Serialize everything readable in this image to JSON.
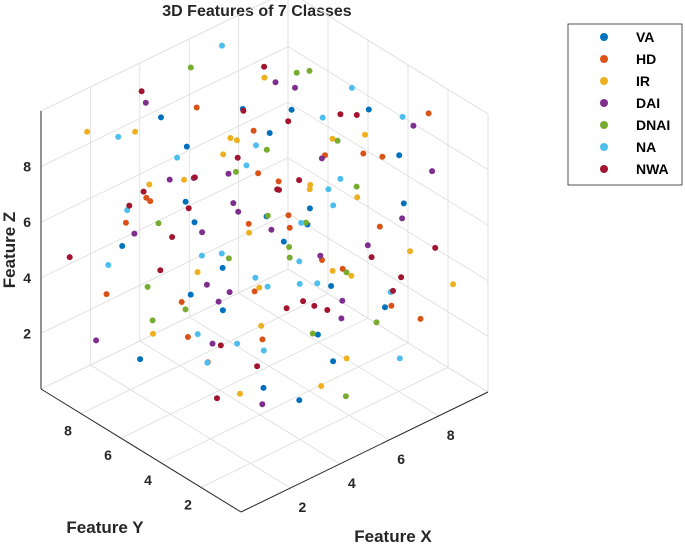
{
  "chart_data": {
    "type": "scatter3d",
    "title": "3D Features of 7 Classes",
    "xlabel": "Feature X",
    "ylabel": "Feature Y",
    "zlabel": "Feature Z",
    "xlim": [
      0,
      10
    ],
    "ylim": [
      0,
      10
    ],
    "zlim": [
      0,
      10
    ],
    "xticks": [
      "2",
      "4",
      "6",
      "8"
    ],
    "yticks": [
      "2",
      "4",
      "6",
      "8"
    ],
    "zticks": [
      "2",
      "4",
      "6",
      "8"
    ],
    "grid": true,
    "legend_position": "top-right",
    "series": [
      {
        "name": "VA",
        "color": "#0072BD",
        "points": [
          [
            2.1,
            3.5,
            4.8
          ],
          [
            6.8,
            1.2,
            3.9
          ],
          [
            3.4,
            8.2,
            9.1
          ],
          [
            8.1,
            5.5,
            2.2
          ],
          [
            4.6,
            4.4,
            6.7
          ],
          [
            1.5,
            6.9,
            1.8
          ],
          [
            7.2,
            8.8,
            7.5
          ],
          [
            5.3,
            2.7,
            2.9
          ],
          [
            9.1,
            3.1,
            5.8
          ],
          [
            2.8,
            9.4,
            4.2
          ],
          [
            6.1,
            6.1,
            8.3
          ],
          [
            3.9,
            1.9,
            1.5
          ],
          [
            8.6,
            7.3,
            3.4
          ],
          [
            5.7,
            4.9,
            5.1
          ],
          [
            1.2,
            2.4,
            7.2
          ],
          [
            7.7,
            1.6,
            8.8
          ],
          [
            4.2,
            7.7,
            2.6
          ],
          [
            9.5,
            9.2,
            6.3
          ],
          [
            2.5,
            5.8,
            9.5
          ],
          [
            6.4,
            3.3,
            1.2
          ],
          [
            3.1,
            6.6,
            6.9
          ],
          [
            8.9,
            4.6,
            8.6
          ],
          [
            5.0,
            8.5,
            4.5
          ],
          [
            1.8,
            1.1,
            3.2
          ],
          [
            7.0,
            5.2,
            5.6
          ]
        ]
      },
      {
        "name": "HD",
        "color": "#D95319",
        "points": [
          [
            1.6,
            8.7,
            3.3
          ],
          [
            7.4,
            2.2,
            6.1
          ],
          [
            4.8,
            5.3,
            9.3
          ],
          [
            9.3,
            6.4,
            1.9
          ],
          [
            2.9,
            2.9,
            5.4
          ],
          [
            5.9,
            9.5,
            7.8
          ],
          [
            8.4,
            1.4,
            2.7
          ],
          [
            3.6,
            7.1,
            1.6
          ],
          [
            6.6,
            4.1,
            4.4
          ],
          [
            1.1,
            5.9,
            8.1
          ],
          [
            8.0,
            8.0,
            4.9
          ],
          [
            4.4,
            3.0,
            7.0
          ],
          [
            9.7,
            2.6,
            9.0
          ],
          [
            2.3,
            4.5,
            2.4
          ],
          [
            6.2,
            6.8,
            6.5
          ],
          [
            3.3,
            1.7,
            8.5
          ],
          [
            7.6,
            9.0,
            3.1
          ],
          [
            5.4,
            5.6,
            1.4
          ],
          [
            1.9,
            8.1,
            6.0
          ],
          [
            8.8,
            3.8,
            7.3
          ],
          [
            4.1,
            9.8,
            5.2
          ],
          [
            6.9,
            1.0,
            4.0
          ],
          [
            2.7,
            6.3,
            3.6
          ],
          [
            9.0,
            5.0,
            6.8
          ],
          [
            5.1,
            2.1,
            9.7
          ]
        ]
      },
      {
        "name": "IR",
        "color": "#EDB120",
        "points": [
          [
            3.0,
            9.0,
            8.4
          ],
          [
            8.3,
            1.8,
            5.0
          ],
          [
            5.6,
            6.0,
            3.0
          ],
          [
            1.4,
            3.9,
            6.3
          ],
          [
            7.1,
            7.6,
            9.2
          ],
          [
            4.3,
            1.3,
            2.1
          ],
          [
            9.4,
            5.8,
            4.7
          ],
          [
            2.2,
            7.3,
            7.6
          ],
          [
            6.3,
            2.5,
            1.7
          ],
          [
            4.9,
            8.9,
            5.9
          ],
          [
            8.5,
            4.3,
            8.0
          ],
          [
            1.7,
            6.5,
            2.8
          ],
          [
            7.3,
            3.5,
            3.8
          ],
          [
            3.7,
            5.1,
            9.6
          ],
          [
            6.0,
            8.3,
            6.6
          ],
          [
            9.8,
            1.5,
            3.3
          ],
          [
            2.6,
            2.2,
            4.6
          ],
          [
            5.5,
            7.0,
            7.9
          ],
          [
            8.1,
            9.6,
            2.3
          ],
          [
            3.2,
            4.0,
            1.1
          ],
          [
            7.8,
            6.2,
            5.5
          ],
          [
            1.3,
            9.3,
            9.0
          ],
          [
            6.7,
            3.7,
            8.9
          ],
          [
            4.6,
            1.1,
            6.2
          ],
          [
            9.2,
            7.9,
            4.3
          ]
        ]
      },
      {
        "name": "DAI",
        "color": "#7E2F8E",
        "points": [
          [
            1.0,
            4.8,
            9.4
          ],
          [
            6.5,
            8.6,
            1.3
          ],
          [
            3.5,
            2.8,
            7.4
          ],
          [
            8.7,
            6.7,
            6.0
          ],
          [
            5.2,
            1.4,
            4.1
          ],
          [
            2.0,
            7.8,
            5.7
          ],
          [
            7.5,
            4.2,
            2.5
          ],
          [
            4.0,
            9.7,
            8.7
          ],
          [
            9.6,
            2.3,
            7.1
          ],
          [
            2.4,
            1.9,
            2.0
          ],
          [
            6.8,
            5.7,
            9.8
          ],
          [
            3.8,
            6.4,
            3.7
          ],
          [
            8.2,
            8.4,
            8.2
          ],
          [
            5.8,
            3.2,
            5.3
          ],
          [
            1.5,
            9.1,
            1.5
          ],
          [
            7.9,
            1.7,
            6.4
          ],
          [
            4.5,
            7.5,
            4.8
          ],
          [
            9.1,
            4.9,
            3.5
          ],
          [
            2.8,
            3.6,
            8.0
          ],
          [
            6.1,
            9.9,
            5.0
          ],
          [
            3.3,
            5.5,
            2.2
          ],
          [
            8.6,
            2.0,
            9.3
          ],
          [
            5.0,
            6.8,
            7.0
          ],
          [
            1.2,
            2.6,
            5.9
          ],
          [
            7.3,
            9.4,
            3.8
          ]
        ]
      },
      {
        "name": "DNAI",
        "color": "#77AC30",
        "points": [
          [
            2.3,
            1.5,
            9.0
          ],
          [
            7.8,
            7.2,
            2.6
          ],
          [
            4.7,
            3.4,
            6.0
          ],
          [
            9.9,
            8.8,
            7.7
          ],
          [
            1.8,
            5.0,
            4.3
          ],
          [
            6.3,
            2.0,
            8.1
          ],
          [
            3.1,
            8.5,
            3.0
          ],
          [
            8.4,
            3.6,
            1.6
          ],
          [
            5.5,
            9.3,
            9.5
          ],
          [
            1.6,
            6.1,
            7.0
          ],
          [
            7.0,
            5.4,
            5.0
          ],
          [
            4.2,
            1.6,
            3.9
          ],
          [
            9.5,
            6.9,
            6.2
          ],
          [
            2.9,
            8.0,
            2.1
          ],
          [
            6.7,
            3.0,
            4.4
          ],
          [
            3.6,
            4.7,
            8.6
          ],
          [
            8.9,
            9.7,
            4.9
          ],
          [
            5.3,
            1.3,
            1.3
          ],
          [
            2.1,
            3.2,
            6.8
          ],
          [
            7.6,
            6.6,
            9.6
          ]
        ]
      },
      {
        "name": "NA",
        "color": "#4DBEEE",
        "points": [
          [
            2.6,
            8.9,
            5.8
          ],
          [
            8.0,
            2.4,
            3.4
          ],
          [
            5.0,
            5.9,
            7.7
          ],
          [
            1.3,
            1.8,
            4.7
          ],
          [
            6.6,
            9.1,
            9.9
          ],
          [
            4.0,
            3.8,
            2.4
          ],
          [
            9.3,
            7.4,
            6.9
          ],
          [
            3.0,
            6.9,
            8.4
          ],
          [
            7.4,
            1.2,
            1.8
          ],
          [
            5.7,
            8.0,
            3.3
          ],
          [
            1.9,
            4.3,
            6.5
          ],
          [
            8.7,
            5.2,
            9.2
          ],
          [
            4.4,
            2.5,
            5.2
          ],
          [
            6.9,
            7.8,
            2.0
          ],
          [
            2.4,
            9.6,
            3.6
          ],
          [
            9.7,
            3.9,
            8.3
          ],
          [
            3.5,
            6.0,
            1.2
          ],
          [
            7.1,
            4.4,
            6.6
          ],
          [
            5.4,
            1.7,
            8.9
          ],
          [
            1.1,
            7.5,
            9.7
          ],
          [
            8.3,
            9.5,
            5.4
          ],
          [
            4.8,
            4.6,
            4.0
          ],
          [
            6.0,
            2.8,
            7.2
          ],
          [
            2.7,
            5.5,
            2.8
          ],
          [
            9.0,
            8.2,
            1.5
          ],
          [
            3.9,
            1.0,
            6.1
          ],
          [
            7.7,
            6.5,
            4.2
          ]
        ]
      },
      {
        "name": "NWA",
        "color": "#A2142F",
        "points": [
          [
            1.4,
            6.6,
            8.0
          ],
          [
            7.2,
            3.1,
            9.8
          ],
          [
            4.1,
            9.1,
            2.9
          ],
          [
            9.4,
            1.9,
            4.6
          ],
          [
            2.5,
            4.1,
            3.1
          ],
          [
            6.1,
            7.7,
            6.7
          ],
          [
            3.4,
            2.3,
            9.1
          ],
          [
            8.8,
            5.9,
            7.9
          ],
          [
            5.9,
            9.9,
            4.0
          ],
          [
            1.7,
            3.3,
            1.9
          ],
          [
            7.9,
            8.6,
            8.8
          ],
          [
            4.7,
            5.0,
            1.0
          ],
          [
            9.8,
            4.1,
            2.4
          ],
          [
            2.2,
            8.3,
            6.4
          ],
          [
            6.5,
            1.5,
            5.7
          ],
          [
            3.8,
            7.0,
            7.3
          ],
          [
            8.5,
            2.9,
            3.0
          ],
          [
            5.2,
            6.3,
            9.4
          ],
          [
            1.0,
            9.8,
            4.4
          ],
          [
            7.5,
            5.6,
            1.7
          ],
          [
            4.3,
            3.5,
            8.2
          ],
          [
            9.2,
            9.0,
            6.1
          ],
          [
            2.9,
            1.3,
            5.5
          ],
          [
            6.4,
            4.8,
            2.7
          ],
          [
            3.1,
            8.8,
            9.9
          ],
          [
            8.1,
            7.1,
            5.3
          ],
          [
            5.6,
            2.6,
            3.7
          ],
          [
            1.5,
            5.3,
            6.9
          ]
        ]
      }
    ]
  }
}
